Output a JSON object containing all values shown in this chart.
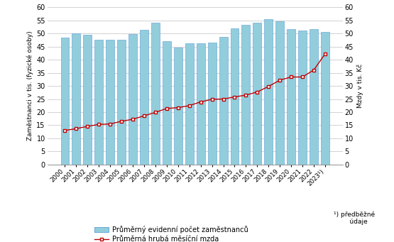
{
  "years": [
    "2000",
    "2001",
    "2002",
    "2003",
    "2004",
    "2005",
    "2006",
    "2007",
    "2008",
    "2009",
    "2010",
    "2011",
    "2012",
    "2013",
    "2014",
    "2015",
    "2016",
    "2017",
    "2018",
    "2019",
    "2020",
    "2021",
    "2022",
    "2023¹)"
  ],
  "employees": [
    48.3,
    50.1,
    49.4,
    47.5,
    47.7,
    47.5,
    49.7,
    51.3,
    54.1,
    47.0,
    44.6,
    46.2,
    46.3,
    46.5,
    48.7,
    52.0,
    53.4,
    54.1,
    55.4,
    54.7,
    51.7,
    51.1,
    51.7,
    50.5
  ],
  "wages": [
    13.0,
    13.7,
    14.6,
    15.3,
    15.5,
    16.5,
    17.3,
    18.6,
    19.9,
    21.4,
    21.7,
    22.5,
    23.9,
    24.9,
    25.0,
    25.8,
    26.5,
    27.7,
    29.8,
    32.2,
    33.4,
    33.4,
    36.1,
    42.2
  ],
  "bar_color": "#92CDDC",
  "bar_edgecolor": "#5B9BD5",
  "line_color": "#C00000",
  "marker_color": "#C00000",
  "marker_face": "#FFFFFF",
  "ylabel_left": "Zaměstnanci v tis. (fyzické osoby)",
  "ylabel_right": "Mzdy v tis. Kč",
  "ylim": [
    0,
    60
  ],
  "yticks": [
    0,
    5,
    10,
    15,
    20,
    25,
    30,
    35,
    40,
    45,
    50,
    55,
    60
  ],
  "legend_bar": "Průměrný evidenní počet zaměstnanců",
  "legend_line": "Průměrná hrubá měsíční mzda",
  "annotation": "¹) předběžné\n         údaje",
  "background_color": "#FFFFFF",
  "grid_color": "#C0C0C0",
  "spine_color": "#808080"
}
